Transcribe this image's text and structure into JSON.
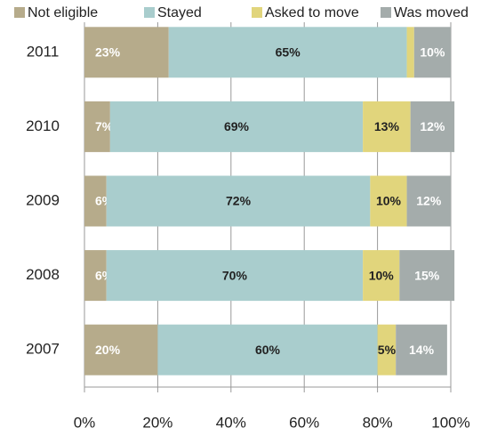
{
  "chart_data": {
    "type": "stacked-bar-horizontal",
    "categories": [
      "2011",
      "2010",
      "2009",
      "2008",
      "2007"
    ],
    "series": [
      {
        "name": "Not eligible",
        "color": "#b6ab8b",
        "label_color": "#ffffff",
        "values": [
          23,
          7,
          6,
          6,
          20
        ],
        "value_labels": [
          "23%",
          "7%",
          "6%",
          "6%",
          "20%"
        ]
      },
      {
        "name": "Stayed",
        "color": "#a9cdcd",
        "label_color": "#222222",
        "values": [
          65,
          69,
          72,
          70,
          60
        ],
        "value_labels": [
          "65%",
          "69%",
          "72%",
          "70%",
          "60%"
        ]
      },
      {
        "name": "Asked to move",
        "color": "#e1d57c",
        "label_color": "#222222",
        "values": [
          2,
          13,
          10,
          10,
          5
        ],
        "value_labels": [
          null,
          "13%",
          "10%",
          "10%",
          "5%"
        ]
      },
      {
        "name": "Was moved",
        "color": "#a4acab",
        "label_color": "#ffffff",
        "values": [
          10,
          12,
          12,
          15,
          14
        ],
        "value_labels": [
          "10%",
          "12%",
          "12%",
          "15%",
          "14%"
        ]
      }
    ],
    "xlim": [
      0,
      100
    ],
    "xticks": [
      {
        "value": 0,
        "label": "0%"
      },
      {
        "value": 20,
        "label": "20%"
      },
      {
        "value": 40,
        "label": "40%"
      },
      {
        "value": 60,
        "label": "60%"
      },
      {
        "value": 80,
        "label": "80%"
      },
      {
        "value": 100,
        "label": "100%"
      }
    ],
    "grid": true,
    "legend": "top"
  }
}
